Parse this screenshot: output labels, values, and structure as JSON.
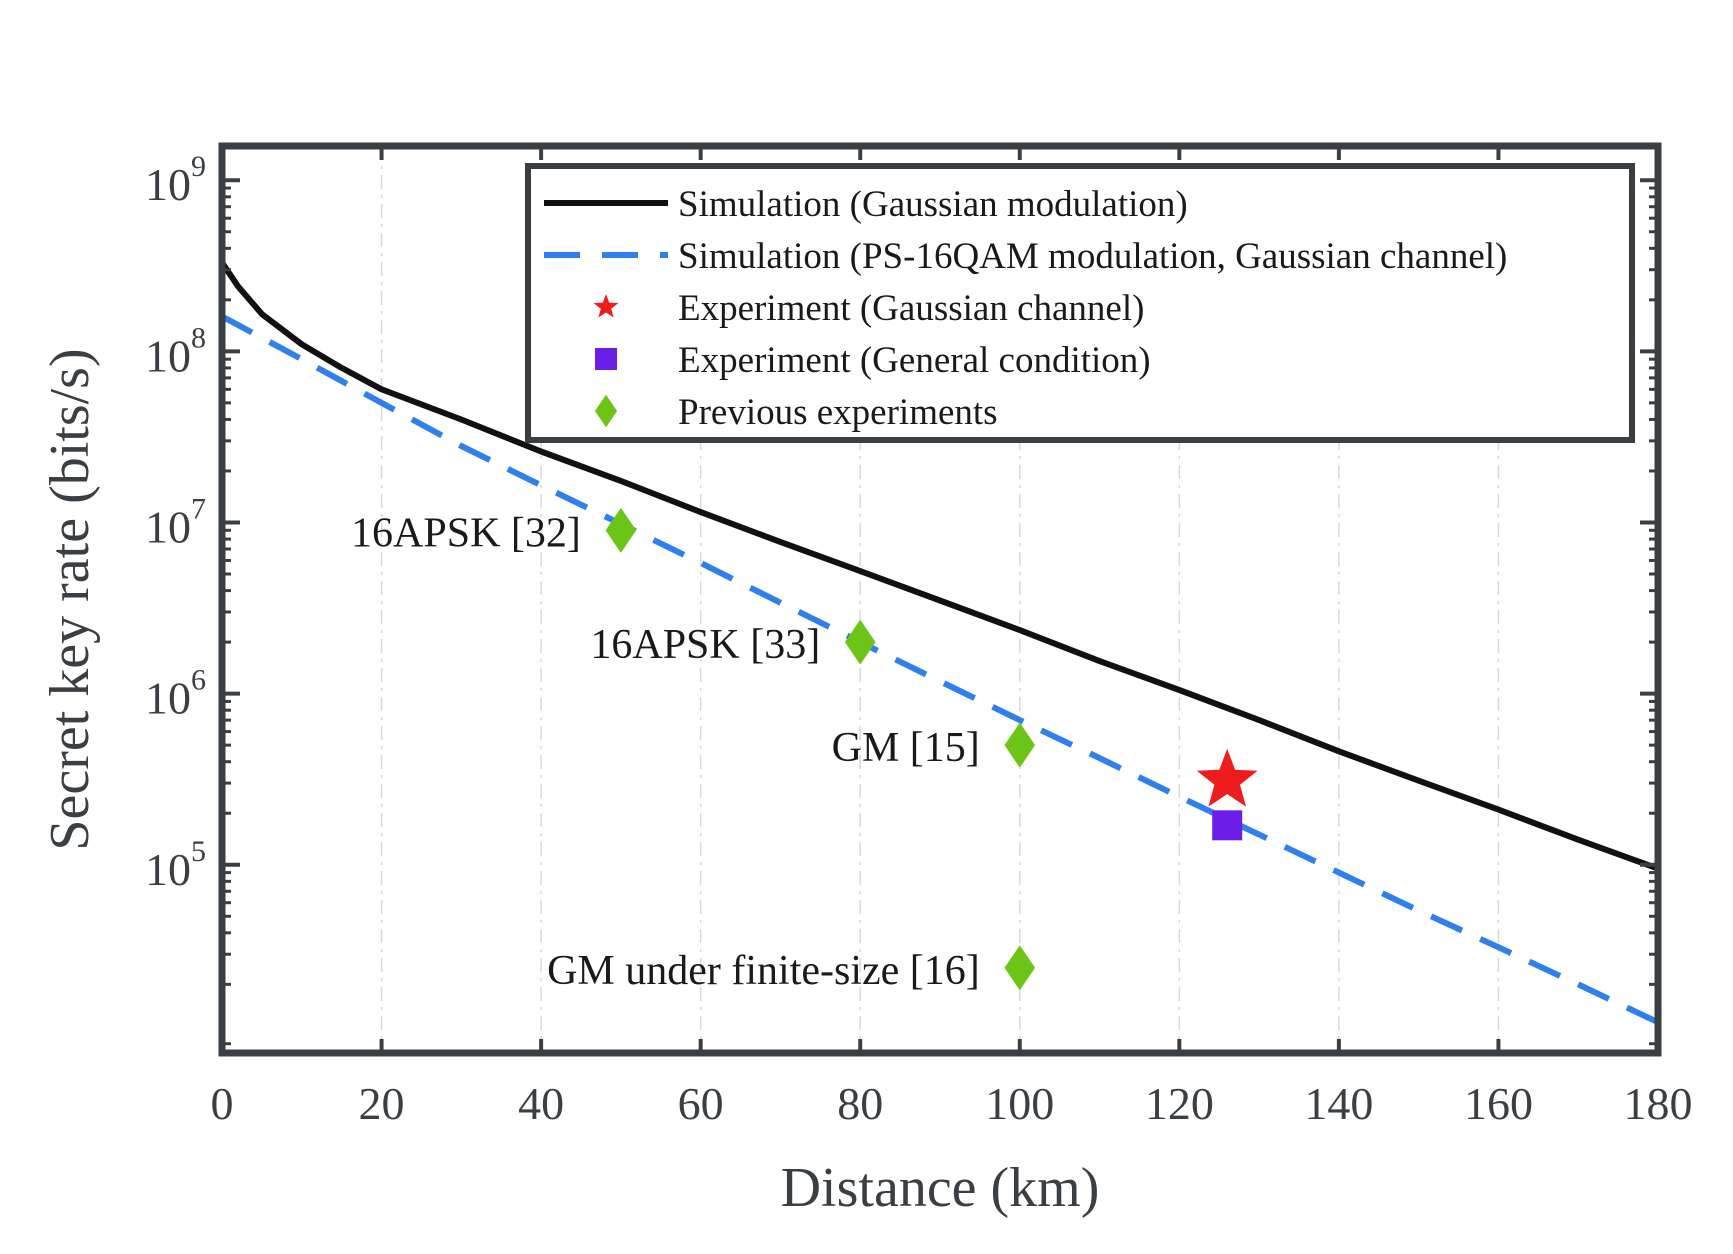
{
  "chart_data": {
    "type": "line",
    "title": "",
    "xlabel": "Distance (km)",
    "ylabel": "Secret key rate (bits/s)",
    "xlim": [
      0,
      180
    ],
    "ylim_log10": [
      3.9,
      9.2
    ],
    "yscale": "log",
    "grid_x": true,
    "grid_y": false,
    "legend_position": "top-right",
    "x_ticks": [
      {
        "value": 0,
        "label": "0"
      },
      {
        "value": 20,
        "label": "20"
      },
      {
        "value": 40,
        "label": "40"
      },
      {
        "value": 60,
        "label": "60"
      },
      {
        "value": 80,
        "label": "80"
      },
      {
        "value": 100,
        "label": "100"
      },
      {
        "value": 120,
        "label": "120"
      },
      {
        "value": 140,
        "label": "140"
      },
      {
        "value": 160,
        "label": "160"
      },
      {
        "value": 180,
        "label": "180"
      }
    ],
    "y_ticks": [
      {
        "log10": 5,
        "base": "10",
        "exp": "5"
      },
      {
        "log10": 6,
        "base": "10",
        "exp": "6"
      },
      {
        "log10": 7,
        "base": "10",
        "exp": "7"
      },
      {
        "log10": 8,
        "base": "10",
        "exp": "8"
      },
      {
        "log10": 9,
        "base": "10",
        "exp": "9"
      }
    ],
    "series": [
      {
        "name": "Simulation (Gaussian modulation)",
        "kind": "line",
        "color": "#111111",
        "dash": "solid",
        "x": [
          0,
          2,
          5,
          10,
          15,
          20,
          30,
          40,
          50,
          60,
          70,
          80,
          90,
          100,
          110,
          120,
          130,
          140,
          150,
          160,
          170,
          180
        ],
        "y": [
          330000000,
          240000000,
          165000000,
          110000000,
          80000000,
          60000000,
          40000000,
          26000000,
          17500000,
          11500000,
          7700000,
          5200000,
          3500000,
          2350000,
          1550000,
          1050000,
          700000,
          460000,
          310000,
          210000,
          140000,
          95000
        ]
      },
      {
        "name": "Simulation (PS-16QAM modulation, Gaussian channel)",
        "kind": "line",
        "color": "#2f80ed",
        "dash": "dashed",
        "x": [
          0,
          10,
          20,
          30,
          40,
          50,
          60,
          70,
          80,
          90,
          100,
          110,
          120,
          130,
          140,
          150,
          160,
          170,
          180
        ],
        "y": [
          160000000,
          90000000,
          50000000,
          28000000,
          16500000,
          9800000,
          5800000,
          3400000,
          2000000,
          1180000,
          700000,
          420000,
          250000,
          150000,
          90000,
          54000,
          33000,
          20000,
          12000
        ]
      },
      {
        "name": "Experiment (Gaussian channel)",
        "kind": "marker",
        "marker": "star",
        "color": "#ee1c1c",
        "x": [
          126
        ],
        "y": [
          310000
        ]
      },
      {
        "name": "Experiment (General condition)",
        "kind": "marker",
        "marker": "square",
        "color": "#6a1ee8",
        "x": [
          126
        ],
        "y": [
          170000
        ]
      },
      {
        "name": "Previous experiments",
        "kind": "marker",
        "marker": "diamond",
        "color": "#6cc417",
        "x": [
          50,
          80,
          100,
          100
        ],
        "y": [
          9000000,
          2000000,
          500000,
          25000
        ]
      }
    ],
    "annotations": [
      {
        "text": "16APSK [32]",
        "x": 50,
        "y": 9000000
      },
      {
        "text": "16APSK [33]",
        "x": 80,
        "y": 2000000
      },
      {
        "text": "GM [15]",
        "x": 100,
        "y": 500000
      },
      {
        "text": "GM under finite-size [16]",
        "x": 100,
        "y": 25000
      }
    ]
  }
}
